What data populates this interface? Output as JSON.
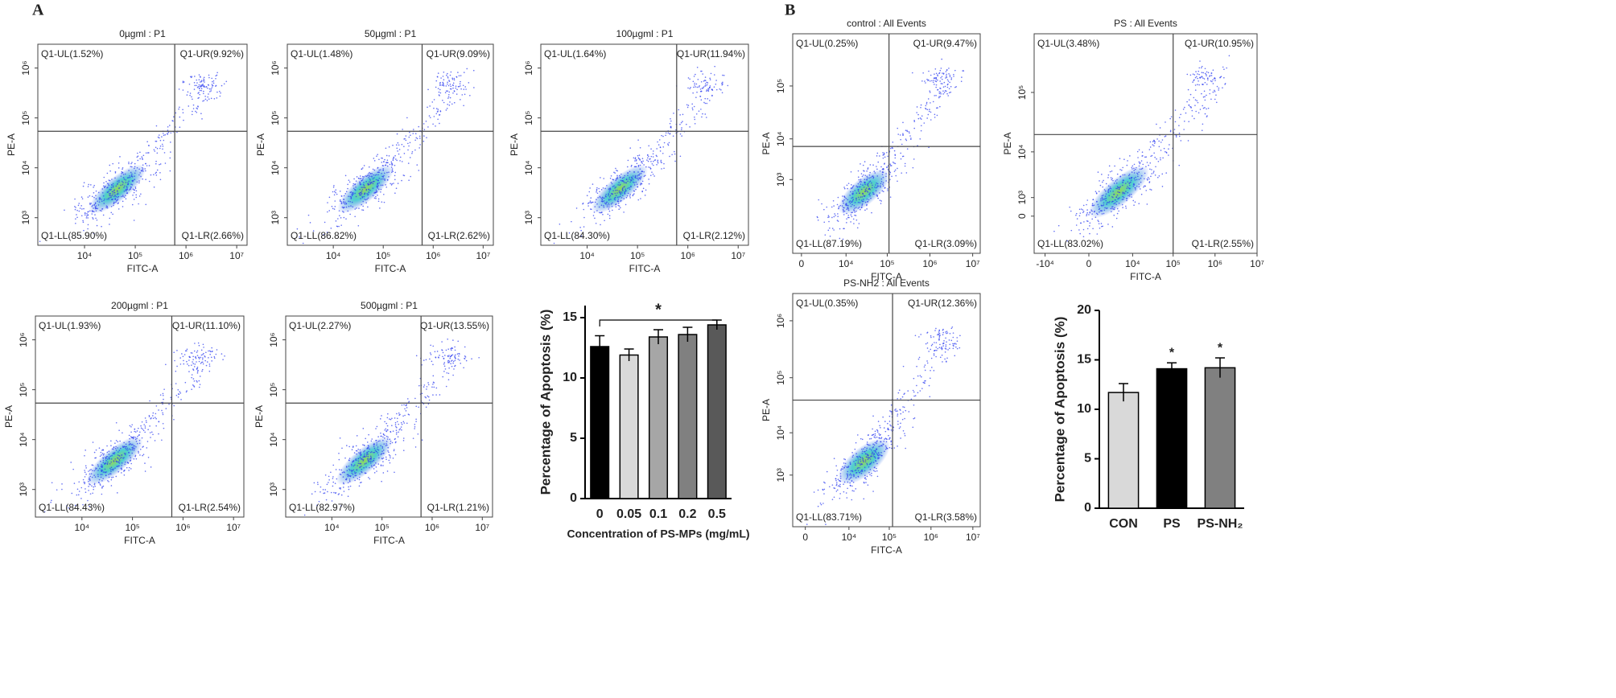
{
  "panels": [
    "A",
    "B"
  ],
  "chart_data": [
    {
      "type": "flow-scatter",
      "title": "0µgml : P1",
      "xlabel": "FITC-A",
      "ylabel": "PE-A",
      "scale": "log",
      "xlim": [
        1200,
        16000000
      ],
      "xticks": [
        {
          "value": 10000,
          "label": "10⁴"
        },
        {
          "value": 100000,
          "label": "10⁵"
        },
        {
          "value": 1000000,
          "label": "10⁶"
        },
        {
          "value": 10000000,
          "label": "10⁷"
        }
      ],
      "ylim": [
        280,
        3000000
      ],
      "yticks": [
        {
          "value": 1000,
          "label": "10³"
        },
        {
          "value": 10000,
          "label": "10⁴"
        },
        {
          "value": 100000,
          "label": "10⁵"
        },
        {
          "value": 1000000,
          "label": "10⁶"
        }
      ],
      "gate": [
        600000,
        54000
      ],
      "quadrants": {
        "UL": "Q1-UL(1.52%)",
        "UR": "Q1-UR(9.92%)",
        "LL": "Q1-LL(85.90%)",
        "LR": "Q1-LR(2.66%)"
      }
    },
    {
      "type": "flow-scatter",
      "title": "50µgml : P1",
      "xlabel": "FITC-A",
      "ylabel": "PE-A",
      "scale": "log",
      "xlim": [
        1200,
        16000000
      ],
      "xticks": [
        {
          "value": 10000,
          "label": "10⁴"
        },
        {
          "value": 100000,
          "label": "10⁵"
        },
        {
          "value": 1000000,
          "label": "10⁶"
        },
        {
          "value": 10000000,
          "label": "10⁷"
        }
      ],
      "ylim": [
        280,
        3000000
      ],
      "yticks": [
        {
          "value": 1000,
          "label": "10³"
        },
        {
          "value": 10000,
          "label": "10⁴"
        },
        {
          "value": 100000,
          "label": "10⁵"
        },
        {
          "value": 1000000,
          "label": "10⁶"
        }
      ],
      "gate": [
        600000,
        54000
      ],
      "quadrants": {
        "UL": "Q1-UL(1.48%)",
        "UR": "Q1-UR(9.09%)",
        "LL": "Q1-LL(86.82%)",
        "LR": "Q1-LR(2.62%)"
      }
    },
    {
      "type": "flow-scatter",
      "title": "100µgml : P1",
      "xlabel": "FITC-A",
      "ylabel": "PE-A",
      "scale": "log",
      "xlim": [
        1200,
        16000000
      ],
      "xticks": [
        {
          "value": 10000,
          "label": "10⁴"
        },
        {
          "value": 100000,
          "label": "10⁵"
        },
        {
          "value": 1000000,
          "label": "10⁶"
        },
        {
          "value": 10000000,
          "label": "10⁷"
        }
      ],
      "ylim": [
        280,
        3000000
      ],
      "yticks": [
        {
          "value": 1000,
          "label": "10³"
        },
        {
          "value": 10000,
          "label": "10⁴"
        },
        {
          "value": 100000,
          "label": "10⁵"
        },
        {
          "value": 1000000,
          "label": "10⁶"
        }
      ],
      "gate": [
        600000,
        54000
      ],
      "quadrants": {
        "UL": "Q1-UL(1.64%)",
        "UR": "Q1-UR(11.94%)",
        "LL": "Q1-LL(84.30%)",
        "LR": "Q1-LR(2.12%)"
      }
    },
    {
      "type": "flow-scatter",
      "title": "200µgml : P1",
      "xlabel": "FITC-A",
      "ylabel": "PE-A",
      "scale": "log",
      "xlim": [
        1200,
        16000000
      ],
      "xticks": [
        {
          "value": 10000,
          "label": "10⁴"
        },
        {
          "value": 100000,
          "label": "10⁵"
        },
        {
          "value": 1000000,
          "label": "10⁶"
        },
        {
          "value": 10000000,
          "label": "10⁷"
        }
      ],
      "ylim": [
        280,
        3000000
      ],
      "yticks": [
        {
          "value": 1000,
          "label": "10³"
        },
        {
          "value": 10000,
          "label": "10⁴"
        },
        {
          "value": 100000,
          "label": "10⁵"
        },
        {
          "value": 1000000,
          "label": "10⁶"
        }
      ],
      "gate": [
        600000,
        54000
      ],
      "quadrants": {
        "UL": "Q1-UL(1.93%)",
        "UR": "Q1-UR(11.10%)",
        "LL": "Q1-LL(84.43%)",
        "LR": "Q1-LR(2.54%)"
      }
    },
    {
      "type": "flow-scatter",
      "title": "500µgml : P1",
      "xlabel": "FITC-A",
      "ylabel": "PE-A",
      "scale": "log",
      "xlim": [
        1200,
        16000000
      ],
      "xticks": [
        {
          "value": 10000,
          "label": "10⁴"
        },
        {
          "value": 100000,
          "label": "10⁵"
        },
        {
          "value": 1000000,
          "label": "10⁶"
        },
        {
          "value": 10000000,
          "label": "10⁷"
        }
      ],
      "ylim": [
        280,
        3000000
      ],
      "yticks": [
        {
          "value": 1000,
          "label": "10³"
        },
        {
          "value": 10000,
          "label": "10⁴"
        },
        {
          "value": 100000,
          "label": "10⁵"
        },
        {
          "value": 1000000,
          "label": "10⁶"
        }
      ],
      "gate": [
        600000,
        54000
      ],
      "quadrants": {
        "UL": "Q1-UL(2.27%)",
        "UR": "Q1-UR(13.55%)",
        "LL": "Q1-LL(82.97%)",
        "LR": "Q1-LR(1.21%)"
      }
    },
    {
      "type": "bar",
      "xlabel": "Concentration of PS-MPs (mg/mL)",
      "ylabel": "Percentage of Apoptosis (%)",
      "categories": [
        "0",
        "0.05",
        "0.1",
        "0.2",
        "0.5"
      ],
      "values": [
        12.6,
        11.9,
        13.4,
        13.6,
        14.4
      ],
      "errors": [
        0.9,
        0.5,
        0.6,
        0.6,
        0.4
      ],
      "colors": [
        "#000000",
        "#d9d9d9",
        "#a6a6a6",
        "#808080",
        "#595959"
      ],
      "ylim": [
        0,
        16
      ],
      "yticks": [
        0,
        5,
        10,
        15
      ],
      "annotation": "*"
    },
    {
      "type": "flow-scatter",
      "title": "control : All Events",
      "xlabel": "FITC-A",
      "ylabel": "PE-A",
      "scale": "biexponential",
      "xlim": [
        -600,
        15000000
      ],
      "xticks": [
        0,
        {
          "value": 10000,
          "label": "10⁴"
        },
        {
          "value": 100000,
          "label": "10⁵"
        },
        {
          "value": 1000000,
          "label": "10⁶"
        },
        {
          "value": 10000000,
          "label": "10⁷"
        }
      ],
      "ylim": [
        -10000,
        900000
      ],
      "yticks": [
        {
          "value": 1000,
          "label": "10³"
        },
        {
          "value": 10000,
          "label": "10⁴"
        },
        {
          "value": 100000,
          "label": "10⁵"
        }
      ],
      "gate": [
        110000,
        7000
      ],
      "quadrants": {
        "UL": "Q1-UL(0.25%)",
        "UR": "Q1-UR(9.47%)",
        "LL": "Q1-LL(87.19%)",
        "LR": "Q1-LR(3.09%)"
      }
    },
    {
      "type": "flow-scatter",
      "title": "PS : All Events",
      "xlabel": "FITC-A",
      "ylabel": "PE-A",
      "scale": "biexponential",
      "xlim": [
        -19000,
        10000000
      ],
      "xticks": [
        {
          "value": -10000,
          "label": "-10⁴"
        },
        0,
        {
          "value": 10000,
          "label": "10⁴"
        },
        {
          "value": 100000,
          "label": "10⁵"
        },
        {
          "value": 1000000,
          "label": "10⁶"
        },
        {
          "value": 10000000,
          "label": "10⁷"
        }
      ],
      "ylim": [
        -3000,
        900000
      ],
      "yticks": [
        0,
        {
          "value": 1000,
          "label": "10³"
        },
        {
          "value": 10000,
          "label": "10⁴"
        },
        {
          "value": 100000,
          "label": "10⁵"
        }
      ],
      "gate": [
        100000,
        20000
      ],
      "quadrants": {
        "UL": "Q1-UL(3.48%)",
        "UR": "Q1-UR(10.95%)",
        "LL": "Q1-LL(83.02%)",
        "LR": "Q1-LR(2.55%)"
      }
    },
    {
      "type": "flow-scatter",
      "title": "PS-NH2 : All Events",
      "xlabel": "FITC-A",
      "ylabel": "PE-A",
      "scale": "biexponential",
      "xlim": [
        -1000,
        15000000
      ],
      "xticks": [
        0,
        {
          "value": 10000,
          "label": "10⁴"
        },
        {
          "value": 100000,
          "label": "10⁵"
        },
        {
          "value": 1000000,
          "label": "10⁶"
        },
        {
          "value": 10000000,
          "label": "10⁷"
        }
      ],
      "ylim": [
        -3000,
        3000000
      ],
      "yticks": [
        {
          "value": 1000,
          "label": "10³"
        },
        {
          "value": 10000,
          "label": "10⁴"
        },
        {
          "value": 100000,
          "label": "10⁵"
        },
        {
          "value": 1000000,
          "label": "10⁶"
        }
      ],
      "gate": [
        120000,
        40000
      ],
      "quadrants": {
        "UL": "Q1-UL(0.35%)",
        "UR": "Q1-UR(12.36%)",
        "LL": "Q1-LL(83.71%)",
        "LR": "Q1-LR(3.58%)"
      }
    },
    {
      "type": "bar",
      "ylabel": "Percentage of Apoptosis (%)",
      "categories": [
        "CON",
        "PS",
        "PS-NH₂"
      ],
      "values": [
        11.7,
        14.1,
        14.2
      ],
      "errors": [
        0.9,
        0.6,
        1.0
      ],
      "colors": [
        "#d9d9d9",
        "#000000",
        "#808080"
      ],
      "ylim": [
        0,
        20
      ],
      "yticks": [
        0,
        5,
        10,
        15,
        20
      ],
      "annotations": [
        null,
        "*",
        "*"
      ]
    }
  ]
}
